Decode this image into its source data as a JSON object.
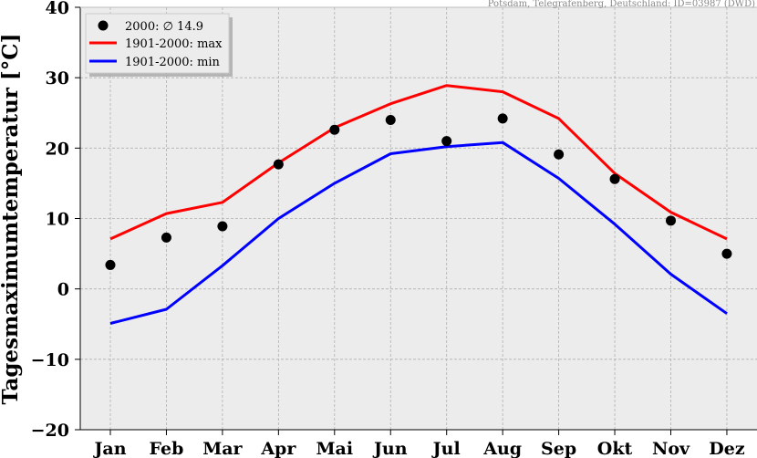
{
  "source_note": "Potsdam, Telegrafenberg, Deutschland: ID=03987 (DWD)",
  "colors": {
    "background": "#ececec",
    "grid": "#b0b0b0",
    "points": "#000000",
    "max": "#ff0000",
    "min": "#0000ff"
  },
  "chart_data": {
    "type": "line",
    "ylabel": "Tagesmaximumtemperatur [°C]",
    "xlabel": "",
    "categories": [
      "Jan",
      "Feb",
      "Mar",
      "Apr",
      "Mai",
      "Jun",
      "Jul",
      "Aug",
      "Sep",
      "Okt",
      "Nov",
      "Dez"
    ],
    "ylim": [
      -20,
      40
    ],
    "yticks": [
      -20,
      -10,
      0,
      10,
      20,
      30,
      40
    ],
    "grid": true,
    "legend_position": "top-left",
    "series": [
      {
        "name": "2000: ∅ 14.9",
        "kind": "scatter",
        "color": "#000000",
        "values": [
          3.4,
          7.3,
          8.9,
          17.7,
          22.6,
          24.0,
          21.0,
          24.2,
          19.1,
          15.6,
          9.7,
          5.0
        ]
      },
      {
        "name": "1901-2000: max",
        "kind": "line",
        "color": "#ff0000",
        "values": [
          7.1,
          10.7,
          12.3,
          17.9,
          22.9,
          26.3,
          28.9,
          28.0,
          24.2,
          16.4,
          10.9,
          7.1
        ]
      },
      {
        "name": "1901-2000: min",
        "kind": "line",
        "color": "#0000ff",
        "values": [
          -4.9,
          -2.9,
          3.3,
          10.0,
          15.0,
          19.2,
          20.2,
          20.8,
          15.7,
          9.2,
          2.1,
          -3.5
        ]
      }
    ]
  }
}
